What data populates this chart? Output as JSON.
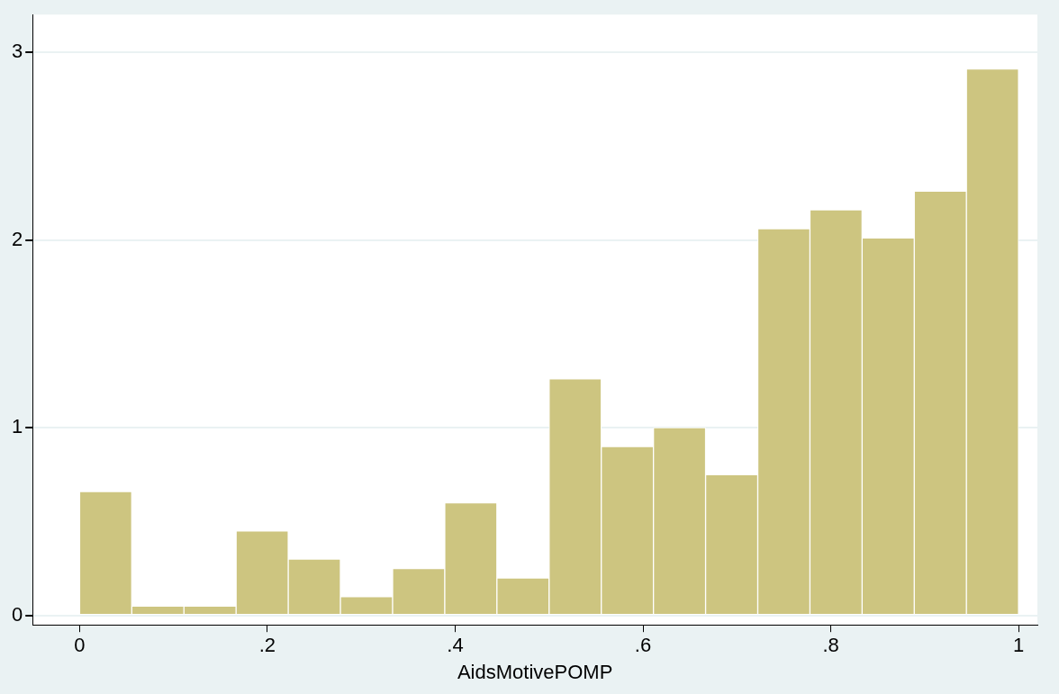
{
  "chart_data": {
    "type": "histogram",
    "xlabel": "AidsMotivePOMP",
    "bins": [
      0,
      0.0556,
      0.1111,
      0.1667,
      0.2222,
      0.2778,
      0.3333,
      0.3889,
      0.4444,
      0.5,
      0.5556,
      0.6111,
      0.6667,
      0.7222,
      0.7778,
      0.8333,
      0.8889,
      0.9444,
      1
    ],
    "values": [
      0.66,
      0.05,
      0.05,
      0.45,
      0.3,
      0.1,
      0.25,
      0.6,
      0.2,
      1.26,
      0.9,
      1.0,
      0.75,
      2.06,
      2.16,
      2.01,
      2.26,
      2.91
    ],
    "color": "#cdc580",
    "xlim": [
      -0.05,
      1.02
    ],
    "xticks": [
      0,
      {
        "value": 0.2,
        "label": ".2"
      },
      {
        "value": 0.4,
        "label": ".4"
      },
      {
        "value": 0.6,
        "label": ".6"
      },
      {
        "value": 0.8,
        "label": ".8"
      },
      1
    ],
    "ylim": [
      -0.05,
      3.2
    ],
    "yticks": [
      0,
      1,
      2,
      3
    ],
    "grid": "y"
  }
}
